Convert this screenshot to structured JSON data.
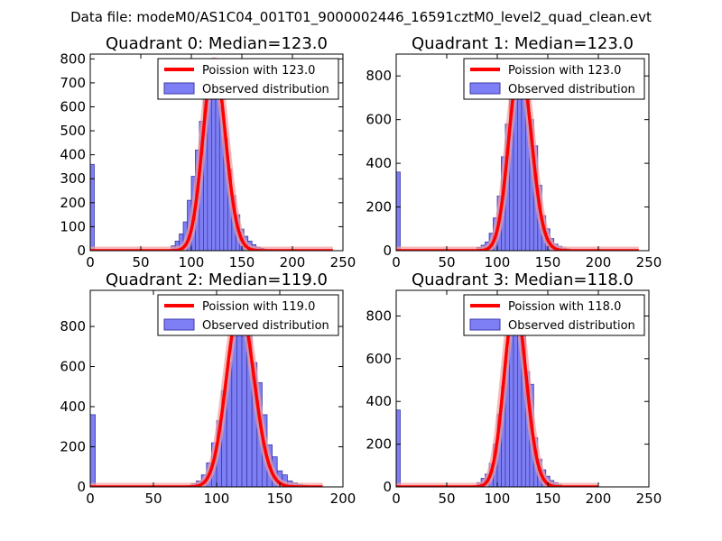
{
  "suptitle": "Data file: modeM0/AS1C04_001T01_9000002446_16591cztM0_level2_quad_clean.evt",
  "colors": {
    "bar_fill": "#7f7ff5",
    "bar_edge": "#3a3aa8",
    "curve": "#ff0000",
    "curve_halo": "#f2a0a0",
    "legend_bar": "#7f7ff5"
  },
  "chart_data": [
    {
      "type": "bar",
      "title": "Quadrant 0: Median=123.0",
      "xlim": [
        0,
        250
      ],
      "ylim": [
        0,
        820
      ],
      "xticks": [
        0,
        50,
        100,
        150,
        200,
        250
      ],
      "yticks": [
        0,
        100,
        200,
        300,
        400,
        500,
        600,
        700,
        800
      ],
      "bin_width": 4,
      "bins": [
        [
          0,
          360
        ],
        [
          80,
          20
        ],
        [
          84,
          40
        ],
        [
          88,
          70
        ],
        [
          92,
          120
        ],
        [
          96,
          210
        ],
        [
          100,
          310
        ],
        [
          104,
          420
        ],
        [
          108,
          540
        ],
        [
          112,
          670
        ],
        [
          116,
          760
        ],
        [
          120,
          790
        ],
        [
          124,
          720
        ],
        [
          128,
          600
        ],
        [
          132,
          470
        ],
        [
          136,
          340
        ],
        [
          140,
          230
        ],
        [
          144,
          150
        ],
        [
          148,
          90
        ],
        [
          152,
          60
        ],
        [
          156,
          40
        ],
        [
          160,
          25
        ],
        [
          164,
          15
        ],
        [
          168,
          10
        ],
        [
          172,
          5
        ]
      ],
      "curve_mean": 123.0,
      "curve_x_max": 240,
      "legend": {
        "line": "Poission with 123.0",
        "bars": "Observed distribution"
      }
    },
    {
      "type": "bar",
      "title": "Quadrant 1: Median=123.0",
      "xlim": [
        0,
        250
      ],
      "ylim": [
        0,
        900
      ],
      "xticks": [
        0,
        50,
        100,
        150,
        200,
        250
      ],
      "yticks": [
        0,
        200,
        400,
        600,
        800
      ],
      "bin_width": 4,
      "bins": [
        [
          0,
          360
        ],
        [
          80,
          15
        ],
        [
          84,
          25
        ],
        [
          88,
          40
        ],
        [
          92,
          80
        ],
        [
          96,
          150
        ],
        [
          100,
          250
        ],
        [
          104,
          430
        ],
        [
          108,
          580
        ],
        [
          112,
          700
        ],
        [
          116,
          800
        ],
        [
          120,
          830
        ],
        [
          124,
          860
        ],
        [
          128,
          760
        ],
        [
          132,
          600
        ],
        [
          136,
          480
        ],
        [
          140,
          300
        ],
        [
          144,
          160
        ],
        [
          148,
          100
        ],
        [
          152,
          55
        ],
        [
          156,
          30
        ],
        [
          160,
          20
        ],
        [
          164,
          12
        ],
        [
          168,
          8
        ],
        [
          172,
          4
        ]
      ],
      "curve_mean": 123.0,
      "curve_x_max": 240,
      "legend": {
        "line": "Poission with 123.0",
        "bars": "Observed distribution"
      }
    },
    {
      "type": "bar",
      "title": "Quadrant 2: Median=119.0",
      "xlim": [
        0,
        200
      ],
      "ylim": [
        0,
        980
      ],
      "xticks": [
        0,
        50,
        100,
        150,
        200
      ],
      "yticks": [
        0,
        200,
        400,
        600,
        800
      ],
      "bin_width": 4,
      "bins": [
        [
          0,
          360
        ],
        [
          80,
          15
        ],
        [
          84,
          30
        ],
        [
          88,
          60
        ],
        [
          92,
          120
        ],
        [
          96,
          220
        ],
        [
          100,
          330
        ],
        [
          104,
          480
        ],
        [
          108,
          620
        ],
        [
          112,
          780
        ],
        [
          116,
          880
        ],
        [
          120,
          900
        ],
        [
          124,
          760
        ],
        [
          128,
          620
        ],
        [
          132,
          520
        ],
        [
          136,
          360
        ],
        [
          140,
          210
        ],
        [
          144,
          150
        ],
        [
          148,
          80
        ],
        [
          152,
          60
        ],
        [
          156,
          30
        ],
        [
          160,
          20
        ],
        [
          164,
          12
        ],
        [
          168,
          8
        ]
      ],
      "curve_mean": 119.0,
      "curve_x_max": 184,
      "legend": {
        "line": "Poission with 119.0",
        "bars": "Observed distribution"
      }
    },
    {
      "type": "bar",
      "title": "Quadrant 3: Median=118.0",
      "xlim": [
        0,
        250
      ],
      "ylim": [
        0,
        920
      ],
      "xticks": [
        0,
        50,
        100,
        150,
        200,
        250
      ],
      "yticks": [
        0,
        200,
        400,
        600,
        800
      ],
      "bin_width": 4,
      "bins": [
        [
          0,
          360
        ],
        [
          80,
          20
        ],
        [
          84,
          40
        ],
        [
          88,
          60
        ],
        [
          92,
          110
        ],
        [
          96,
          200
        ],
        [
          100,
          340
        ],
        [
          104,
          470
        ],
        [
          108,
          640
        ],
        [
          112,
          760
        ],
        [
          116,
          860
        ],
        [
          120,
          840
        ],
        [
          124,
          720
        ],
        [
          128,
          540
        ],
        [
          132,
          480
        ],
        [
          136,
          230
        ],
        [
          140,
          130
        ],
        [
          144,
          80
        ],
        [
          148,
          50
        ],
        [
          152,
          30
        ],
        [
          156,
          20
        ],
        [
          160,
          10
        ]
      ],
      "curve_mean": 118.0,
      "curve_x_max": 200,
      "legend": {
        "line": "Poission with 118.0",
        "bars": "Observed distribution"
      }
    }
  ]
}
